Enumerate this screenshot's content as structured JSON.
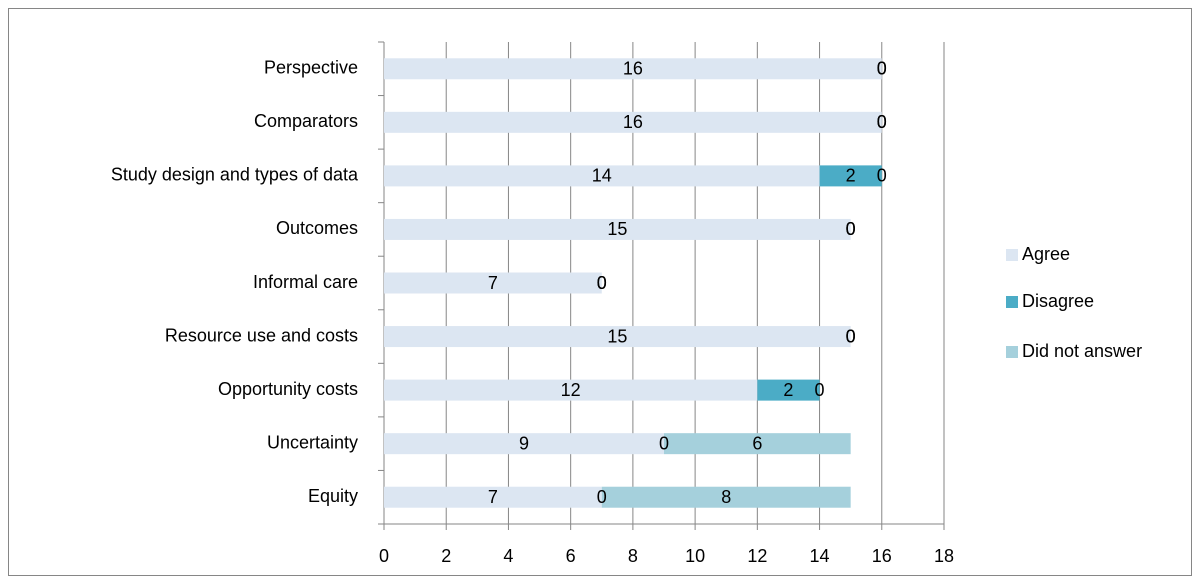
{
  "chart_data": {
    "type": "stacked-bar-horizontal",
    "categories": [
      "Perspective",
      "Comparators",
      "Study design and types of data",
      "Outcomes",
      "Informal care",
      "Resource use and costs",
      "Opportunity costs",
      "Uncertainty",
      "Equity"
    ],
    "series": [
      {
        "name": "Agree",
        "color": "#dce6f2",
        "values": [
          16,
          16,
          14,
          15,
          7,
          15,
          12,
          9,
          7
        ]
      },
      {
        "name": "Disagree",
        "color": "#4bacc6",
        "values": [
          0,
          0,
          2,
          0,
          0,
          0,
          2,
          0,
          0
        ]
      },
      {
        "name": "Did not answer",
        "color": "#a5d0dc",
        "values": [
          0,
          0,
          0,
          0,
          0,
          0,
          0,
          6,
          8
        ]
      }
    ],
    "xlim": [
      0,
      18
    ],
    "xticks": [
      0,
      2,
      4,
      6,
      8,
      10,
      12,
      14,
      16,
      18
    ],
    "grid": true,
    "legend": "right"
  }
}
